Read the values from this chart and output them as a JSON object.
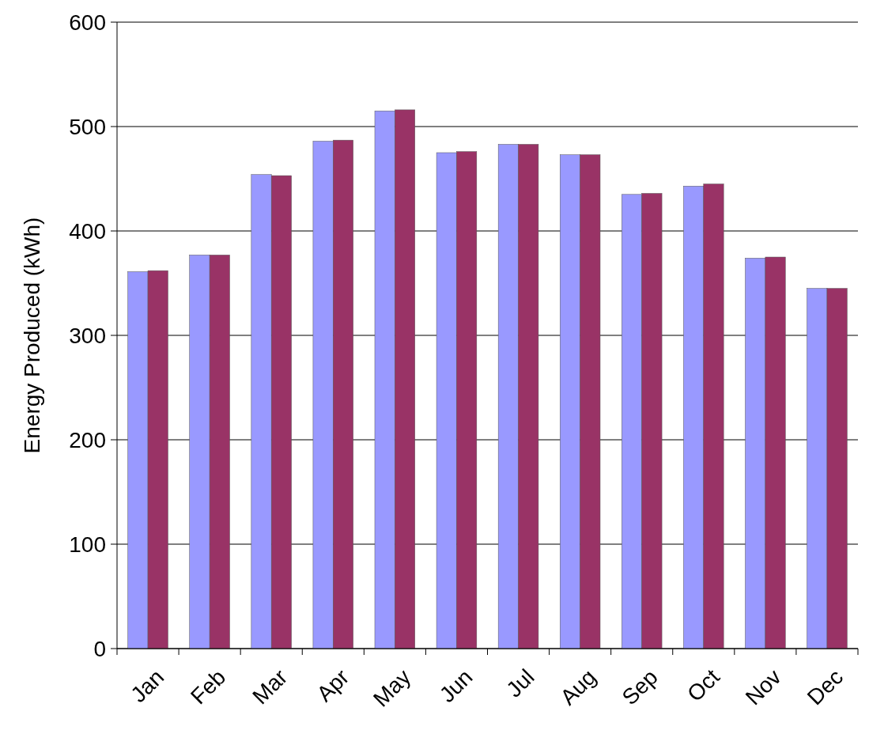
{
  "chart_data": {
    "type": "bar",
    "ylabel": "Energy Produced (kWh)",
    "categories": [
      "Jan",
      "Feb",
      "Mar",
      "Apr",
      "May",
      "Jun",
      "Jul",
      "Aug",
      "Sep",
      "Oct",
      "Nov",
      "Dec"
    ],
    "series": [
      {
        "color": "#9999ff",
        "values": [
          361,
          377,
          454,
          486,
          515,
          475,
          483,
          473,
          435,
          443,
          374,
          345
        ]
      },
      {
        "color": "#993366",
        "values": [
          362,
          377,
          453,
          487,
          516,
          476,
          483,
          473,
          436,
          445,
          375,
          345
        ]
      }
    ],
    "ylim": [
      0,
      600
    ],
    "yticks": [
      0,
      100,
      200,
      300,
      400,
      500,
      600
    ],
    "grid": "y"
  }
}
